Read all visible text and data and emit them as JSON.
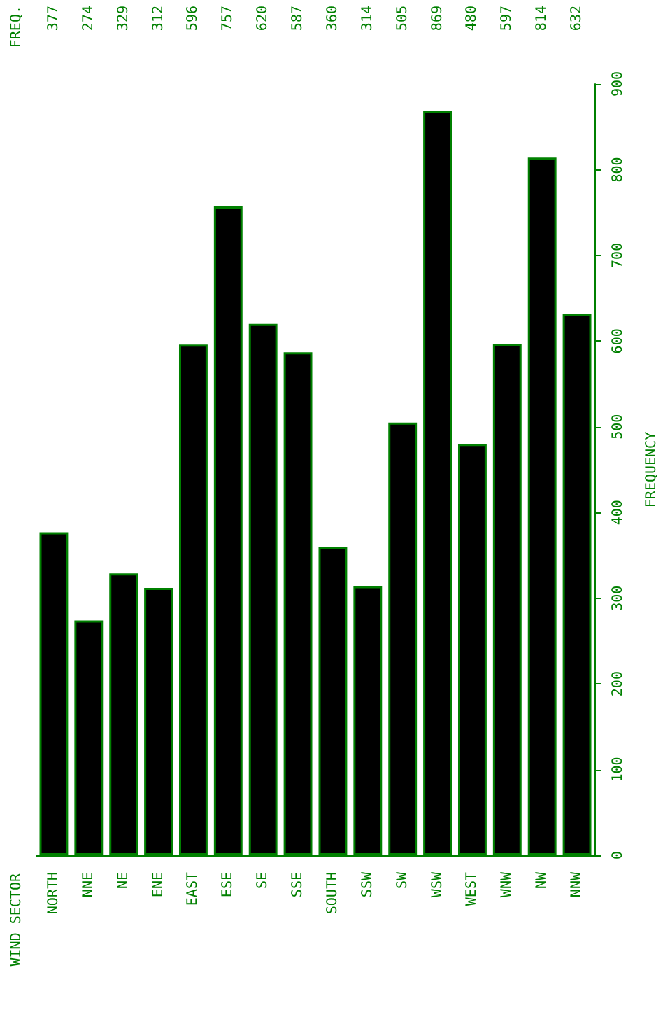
{
  "chart_data": {
    "type": "bar",
    "ylabel": "FREQUENCY",
    "annotations": [
      "FREQ.",
      "WIND SECTOR"
    ],
    "categories": [
      "NORTH",
      "NNE",
      "NE",
      "ENE",
      "EAST",
      "ESE",
      "SE",
      "SSE",
      "SOUTH",
      "SSW",
      "SW",
      "WSW",
      "WEST",
      "WNW",
      "NW",
      "NNW"
    ],
    "values": [
      377,
      274,
      329,
      312,
      596,
      757,
      620,
      587,
      360,
      314,
      505,
      869,
      480,
      597,
      814,
      632
    ],
    "color": "#000000",
    "ylim": [
      0,
      900
    ],
    "yticks": [
      0,
      100,
      200,
      300,
      400,
      500,
      600,
      700,
      800,
      900
    ],
    "data_labels": true,
    "grid": false
  }
}
